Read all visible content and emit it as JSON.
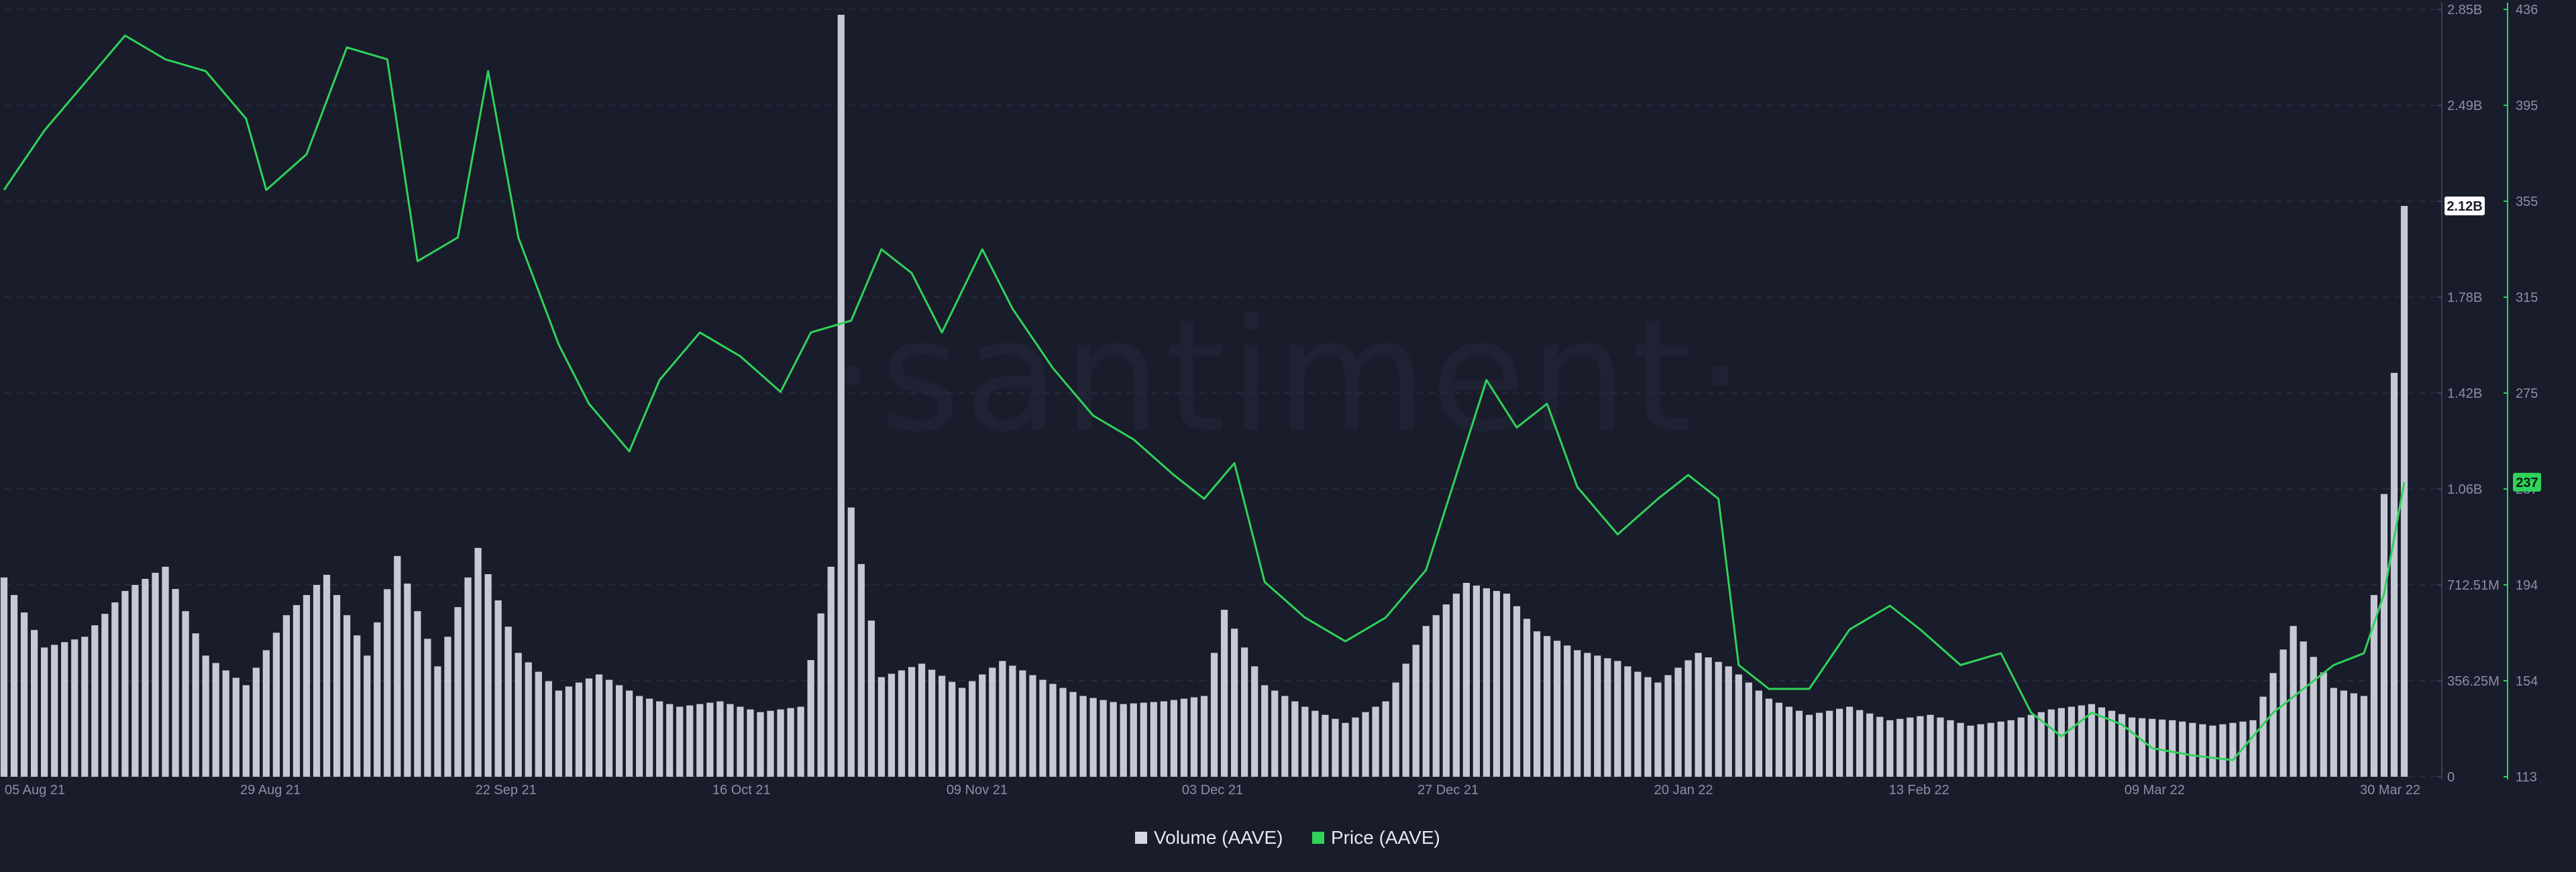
{
  "colors": {
    "background": "#191c2b",
    "grid": "#252a3c",
    "volume": "#d5d8e3",
    "price": "#2fd35a",
    "volume_badge_bg": "#ffffff",
    "volume_badge_text": "#191c2b",
    "price_badge_bg": "#2fd35a",
    "price_badge_text": "#0c1a10"
  },
  "watermark": "·santiment·",
  "chart_data": {
    "type": "bar+line",
    "title": "",
    "x_dates": [
      "05 Aug 21",
      "29 Aug 21",
      "22 Sep 21",
      "16 Oct 21",
      "09 Nov 21",
      "03 Dec 21",
      "27 Dec 21",
      "20 Jan 22",
      "13 Feb 22",
      "09 Mar 22",
      "30 Mar 22"
    ],
    "x_range": [
      "2021-08-04",
      "2022-03-30"
    ],
    "volume_axis": {
      "side": "right",
      "ticks": [
        "0",
        "356.25M",
        "712.51M",
        "1.06B",
        "1.42B",
        "1.78B",
        "2.12B",
        "2.49B",
        "2.85B"
      ],
      "ylim": [
        0,
        2850000000
      ],
      "current_label": "2.12B",
      "current_value": 2120000000
    },
    "price_axis": {
      "side": "right",
      "ticks": [
        "113",
        "154",
        "194",
        "237",
        "275",
        "315",
        "355",
        "395",
        "436"
      ],
      "ylim": [
        113,
        436
      ],
      "current_label": "237",
      "current_value": 237
    },
    "legend": [
      "Volume (AAVE)",
      "Price (AAVE)"
    ],
    "legend_position": "bottom-center",
    "grid": true,
    "series": [
      {
        "name": "Price (AAVE)",
        "type": "line",
        "axis": "price",
        "points": [
          [
            "2021-08-04",
            360
          ],
          [
            "2021-08-08",
            385
          ],
          [
            "2021-08-12",
            405
          ],
          [
            "2021-08-16",
            425
          ],
          [
            "2021-08-20",
            415
          ],
          [
            "2021-08-24",
            410
          ],
          [
            "2021-08-28",
            390
          ],
          [
            "2021-08-30",
            360
          ],
          [
            "2021-09-03",
            375
          ],
          [
            "2021-09-07",
            420
          ],
          [
            "2021-09-11",
            415
          ],
          [
            "2021-09-14",
            330
          ],
          [
            "2021-09-18",
            340
          ],
          [
            "2021-09-21",
            410
          ],
          [
            "2021-09-24",
            340
          ],
          [
            "2021-09-28",
            295
          ],
          [
            "2021-10-01",
            270
          ],
          [
            "2021-10-05",
            250
          ],
          [
            "2021-10-08",
            280
          ],
          [
            "2021-10-12",
            300
          ],
          [
            "2021-10-16",
            290
          ],
          [
            "2021-10-20",
            275
          ],
          [
            "2021-10-23",
            300
          ],
          [
            "2021-10-27",
            305
          ],
          [
            "2021-10-30",
            335
          ],
          [
            "2021-11-02",
            325
          ],
          [
            "2021-11-05",
            300
          ],
          [
            "2021-11-09",
            335
          ],
          [
            "2021-11-12",
            310
          ],
          [
            "2021-11-16",
            285
          ],
          [
            "2021-11-20",
            265
          ],
          [
            "2021-11-24",
            255
          ],
          [
            "2021-11-28",
            240
          ],
          [
            "2021-12-01",
            230
          ],
          [
            "2021-12-04",
            245
          ],
          [
            "2021-12-07",
            195
          ],
          [
            "2021-12-11",
            180
          ],
          [
            "2021-12-15",
            170
          ],
          [
            "2021-12-19",
            180
          ],
          [
            "2021-12-23",
            200
          ],
          [
            "2021-12-26",
            240
          ],
          [
            "2021-12-29",
            280
          ],
          [
            "2022-01-01",
            260
          ],
          [
            "2022-01-04",
            270
          ],
          [
            "2022-01-07",
            235
          ],
          [
            "2022-01-11",
            215
          ],
          [
            "2022-01-15",
            230
          ],
          [
            "2022-01-18",
            240
          ],
          [
            "2022-01-21",
            230
          ],
          [
            "2022-01-23",
            160
          ],
          [
            "2022-01-26",
            150
          ],
          [
            "2022-01-30",
            150
          ],
          [
            "2022-02-03",
            175
          ],
          [
            "2022-02-07",
            185
          ],
          [
            "2022-02-10",
            175
          ],
          [
            "2022-02-14",
            160
          ],
          [
            "2022-02-18",
            165
          ],
          [
            "2022-02-21",
            140
          ],
          [
            "2022-02-24",
            130
          ],
          [
            "2022-02-27",
            140
          ],
          [
            "2022-03-02",
            135
          ],
          [
            "2022-03-05",
            125
          ],
          [
            "2022-03-09",
            122
          ],
          [
            "2022-03-13",
            120
          ],
          [
            "2022-03-17",
            140
          ],
          [
            "2022-03-20",
            150
          ],
          [
            "2022-03-23",
            160
          ],
          [
            "2022-03-26",
            165
          ],
          [
            "2022-03-28",
            190
          ],
          [
            "2022-03-30",
            237
          ]
        ]
      },
      {
        "name": "Volume (AAVE)",
        "type": "bar",
        "axis": "volume",
        "points": [
          [
            "2021-08-04",
            740000000
          ],
          [
            "2021-08-08",
            480000000
          ],
          [
            "2021-08-12",
            520000000
          ],
          [
            "2021-08-16",
            690000000
          ],
          [
            "2021-08-20",
            780000000
          ],
          [
            "2021-08-24",
            450000000
          ],
          [
            "2021-08-28",
            340000000
          ],
          [
            "2021-09-01",
            600000000
          ],
          [
            "2021-09-05",
            750000000
          ],
          [
            "2021-09-09",
            450000000
          ],
          [
            "2021-09-12",
            820000000
          ],
          [
            "2021-09-16",
            410000000
          ],
          [
            "2021-09-20",
            850000000
          ],
          [
            "2021-09-24",
            460000000
          ],
          [
            "2021-09-28",
            320000000
          ],
          [
            "2021-10-02",
            380000000
          ],
          [
            "2021-10-06",
            300000000
          ],
          [
            "2021-10-10",
            260000000
          ],
          [
            "2021-10-14",
            280000000
          ],
          [
            "2021-10-18",
            240000000
          ],
          [
            "2021-10-22",
            260000000
          ],
          [
            "2021-10-25",
            780000000
          ],
          [
            "2021-10-26",
            2830000000
          ],
          [
            "2021-10-27",
            1000000000
          ],
          [
            "2021-10-30",
            370000000
          ],
          [
            "2021-11-03",
            420000000
          ],
          [
            "2021-11-07",
            330000000
          ],
          [
            "2021-11-11",
            430000000
          ],
          [
            "2021-11-15",
            360000000
          ],
          [
            "2021-11-19",
            300000000
          ],
          [
            "2021-11-23",
            270000000
          ],
          [
            "2021-11-27",
            280000000
          ],
          [
            "2021-12-01",
            300000000
          ],
          [
            "2021-12-03",
            620000000
          ],
          [
            "2021-12-07",
            340000000
          ],
          [
            "2021-12-11",
            260000000
          ],
          [
            "2021-12-15",
            200000000
          ],
          [
            "2021-12-19",
            280000000
          ],
          [
            "2021-12-23",
            560000000
          ],
          [
            "2021-12-27",
            720000000
          ],
          [
            "2021-12-31",
            680000000
          ],
          [
            "2022-01-03",
            540000000
          ],
          [
            "2022-01-07",
            470000000
          ],
          [
            "2022-01-11",
            430000000
          ],
          [
            "2022-01-15",
            350000000
          ],
          [
            "2022-01-19",
            460000000
          ],
          [
            "2022-01-22",
            410000000
          ],
          [
            "2022-01-26",
            290000000
          ],
          [
            "2022-01-30",
            230000000
          ],
          [
            "2022-02-03",
            260000000
          ],
          [
            "2022-02-07",
            210000000
          ],
          [
            "2022-02-11",
            230000000
          ],
          [
            "2022-02-15",
            190000000
          ],
          [
            "2022-02-19",
            210000000
          ],
          [
            "2022-02-23",
            250000000
          ],
          [
            "2022-02-27",
            270000000
          ],
          [
            "2022-03-03",
            220000000
          ],
          [
            "2022-03-07",
            210000000
          ],
          [
            "2022-03-11",
            190000000
          ],
          [
            "2022-03-15",
            210000000
          ],
          [
            "2022-03-19",
            560000000
          ],
          [
            "2022-03-23",
            330000000
          ],
          [
            "2022-03-26",
            300000000
          ],
          [
            "2022-03-28",
            1050000000
          ],
          [
            "2022-03-29",
            1500000000
          ],
          [
            "2022-03-30",
            2120000000
          ]
        ]
      }
    ]
  }
}
